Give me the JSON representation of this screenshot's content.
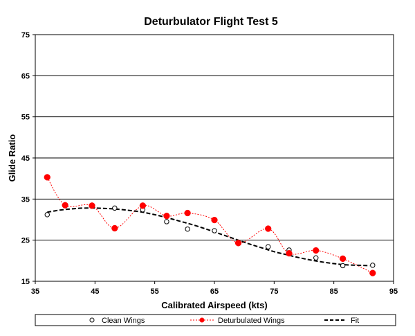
{
  "chart_data": {
    "type": "line",
    "title": "Deturbulator Flight Test 5",
    "xlabel": "Calibrated Airspeed  (kts)",
    "ylabel": "Glide Ratio",
    "xlim": [
      35,
      95
    ],
    "ylim": [
      15,
      75
    ],
    "xticks": [
      "35",
      "45",
      "55",
      "65",
      "75",
      "85",
      "95"
    ],
    "yticks": [
      "15",
      "25",
      "35",
      "45",
      "55",
      "65",
      "75"
    ],
    "grid": "horizontal",
    "legend_position": "bottom",
    "series": [
      {
        "name": "Clean Wings",
        "style": "markers",
        "marker": "open-circle",
        "color": "#000000",
        "points": [
          [
            37,
            31.2
          ],
          [
            40,
            33.5
          ],
          [
            44.5,
            33.3
          ],
          [
            48.3,
            32.8
          ],
          [
            53,
            32.4
          ],
          [
            57,
            29.5
          ],
          [
            60.5,
            27.7
          ],
          [
            65,
            27.3
          ],
          [
            69,
            24.5
          ],
          [
            74,
            23.4
          ],
          [
            77.5,
            22.6
          ],
          [
            82,
            20.7
          ],
          [
            86.5,
            18.8
          ],
          [
            91.5,
            18.9
          ]
        ]
      },
      {
        "name": "Deturbulated Wings",
        "style": "dashed-line-markers",
        "marker": "filled-circle",
        "color": "#ff0000",
        "points": [
          [
            37,
            40.3
          ],
          [
            40,
            33.5
          ],
          [
            44.5,
            33.4
          ],
          [
            48.3,
            27.9
          ],
          [
            53,
            33.4
          ],
          [
            57,
            30.9
          ],
          [
            60.5,
            31.6
          ],
          [
            65,
            29.9
          ],
          [
            69,
            24.3
          ],
          [
            74,
            27.8
          ],
          [
            77.5,
            21.8
          ],
          [
            82,
            22.5
          ],
          [
            86.5,
            20.5
          ],
          [
            91.5,
            17.0
          ]
        ]
      },
      {
        "name": "Fit",
        "style": "dashed-line",
        "color": "#000000",
        "points": [
          [
            37,
            31.8
          ],
          [
            39,
            32.3
          ],
          [
            41,
            32.6
          ],
          [
            43,
            32.8
          ],
          [
            45,
            32.8
          ],
          [
            47,
            32.7
          ],
          [
            49,
            32.5
          ],
          [
            51,
            32.2
          ],
          [
            53,
            31.8
          ],
          [
            55,
            31.2
          ],
          [
            57,
            30.5
          ],
          [
            59,
            29.7
          ],
          [
            61,
            28.9
          ],
          [
            63,
            28.0
          ],
          [
            65,
            27.0
          ],
          [
            67,
            26.0
          ],
          [
            69,
            25.0
          ],
          [
            71,
            24.0
          ],
          [
            73,
            23.1
          ],
          [
            75,
            22.2
          ],
          [
            77,
            21.5
          ],
          [
            79,
            20.8
          ],
          [
            81,
            20.2
          ],
          [
            83,
            19.7
          ],
          [
            85,
            19.3
          ],
          [
            87,
            19.0
          ],
          [
            89,
            18.9
          ],
          [
            91,
            18.8
          ]
        ]
      }
    ]
  }
}
